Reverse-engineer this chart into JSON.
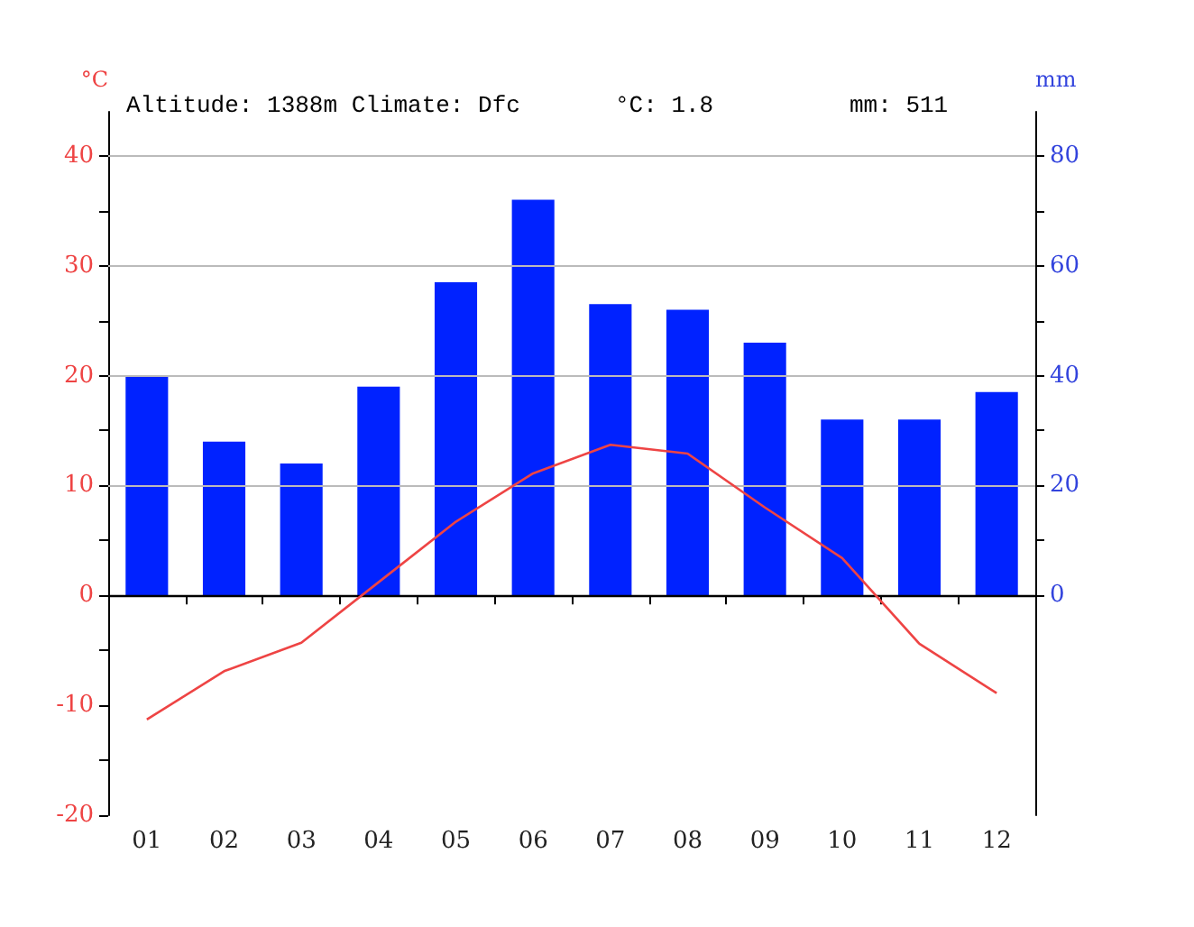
{
  "chart_data": {
    "type": "bar",
    "title": "Altitude: 1388m Climate: Dfc",
    "annotations": [
      "°C: 1.8",
      "mm: 511"
    ],
    "ylabel": "°C",
    "y2label": "mm",
    "categories": [
      "01",
      "02",
      "03",
      "04",
      "05",
      "06",
      "07",
      "08",
      "09",
      "10",
      "11",
      "12"
    ],
    "series": [
      {
        "axis": "y2",
        "color": "#0022ff",
        "values": [
          40,
          28,
          24,
          38,
          57,
          72,
          53,
          52,
          46,
          32,
          32,
          37
        ]
      },
      {
        "type": "line",
        "axis": "y",
        "color": "#ee4444",
        "values": [
          -11.3,
          -6.9,
          -4.3,
          1.2,
          6.7,
          11.1,
          13.7,
          12.9,
          8.0,
          3.4,
          -4.4,
          -8.9
        ]
      }
    ],
    "ylim": [
      -20,
      44
    ],
    "yticks": [
      -20,
      {
        "value": -15,
        "label": null
      },
      -10,
      {
        "value": -5,
        "label": null
      },
      0,
      {
        "value": 5,
        "label": null
      },
      10,
      {
        "value": 15,
        "label": null
      },
      20,
      {
        "value": 25,
        "label": null
      },
      30,
      {
        "value": 35,
        "label": null
      },
      40
    ],
    "y2lim": [
      -40,
      88
    ],
    "y2ticks": [
      0,
      {
        "value": 10,
        "label": null
      },
      20,
      {
        "value": 30,
        "label": null
      },
      40,
      {
        "value": 50,
        "label": null
      },
      60,
      {
        "value": 70,
        "label": null
      },
      80
    ],
    "grid": "y2",
    "ref_lines": [
      {
        "axis": "y",
        "value": 0,
        "color": "#000000"
      }
    ]
  }
}
